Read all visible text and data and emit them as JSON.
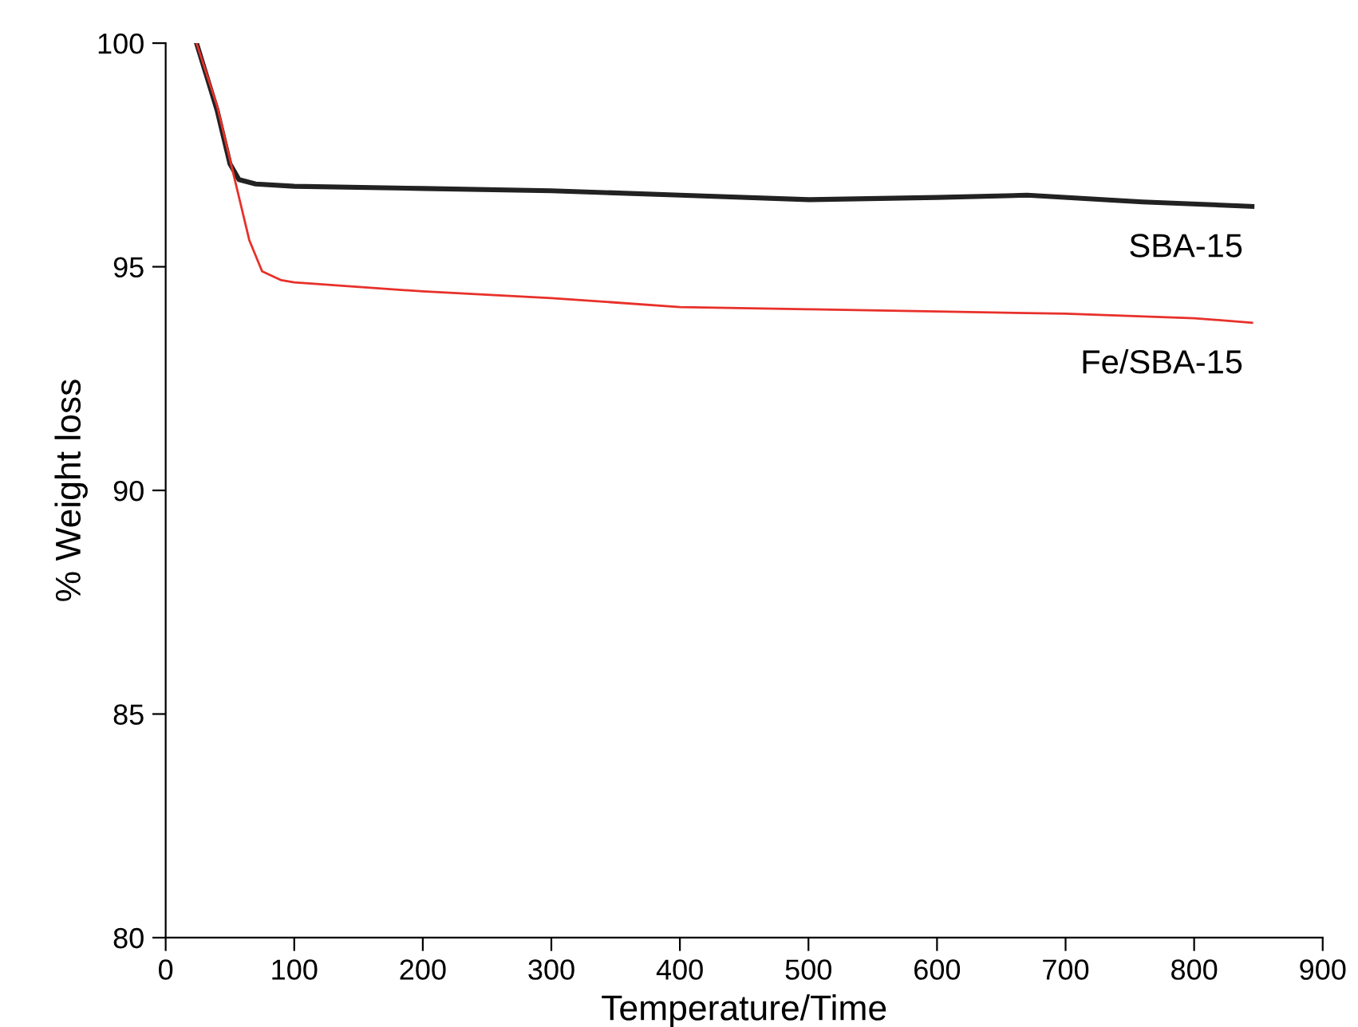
{
  "chart_data": {
    "type": "line",
    "xlabel": "Temperature/Time",
    "ylabel": "% Weight loss",
    "xlim": [
      0,
      900
    ],
    "ylim": [
      80,
      100
    ],
    "xticks": [
      0,
      100,
      200,
      300,
      400,
      500,
      600,
      700,
      800,
      900
    ],
    "yticks": [
      80,
      85,
      90,
      95,
      100
    ],
    "grid": false,
    "legend": false,
    "marker": "none",
    "line_style": "solid",
    "series": [
      {
        "name": "SBA-15",
        "color": "#222222",
        "x": [
          24,
          40,
          50,
          57,
          70,
          100,
          200,
          300,
          400,
          500,
          600,
          670,
          760,
          845
        ],
        "values": [
          100,
          98.5,
          97.3,
          96.95,
          96.85,
          96.8,
          96.75,
          96.7,
          96.6,
          96.5,
          96.55,
          96.6,
          96.45,
          96.35
        ]
      },
      {
        "name": "Fe/SBA-15",
        "color": "#e8302a",
        "x": [
          24,
          40,
          55,
          65,
          75,
          90,
          100,
          200,
          300,
          400,
          500,
          600,
          700,
          800,
          845
        ],
        "values": [
          100,
          98.6,
          96.8,
          95.6,
          94.9,
          94.7,
          94.65,
          94.45,
          94.3,
          94.1,
          94.05,
          94.0,
          93.95,
          93.85,
          93.75
        ]
      }
    ]
  }
}
